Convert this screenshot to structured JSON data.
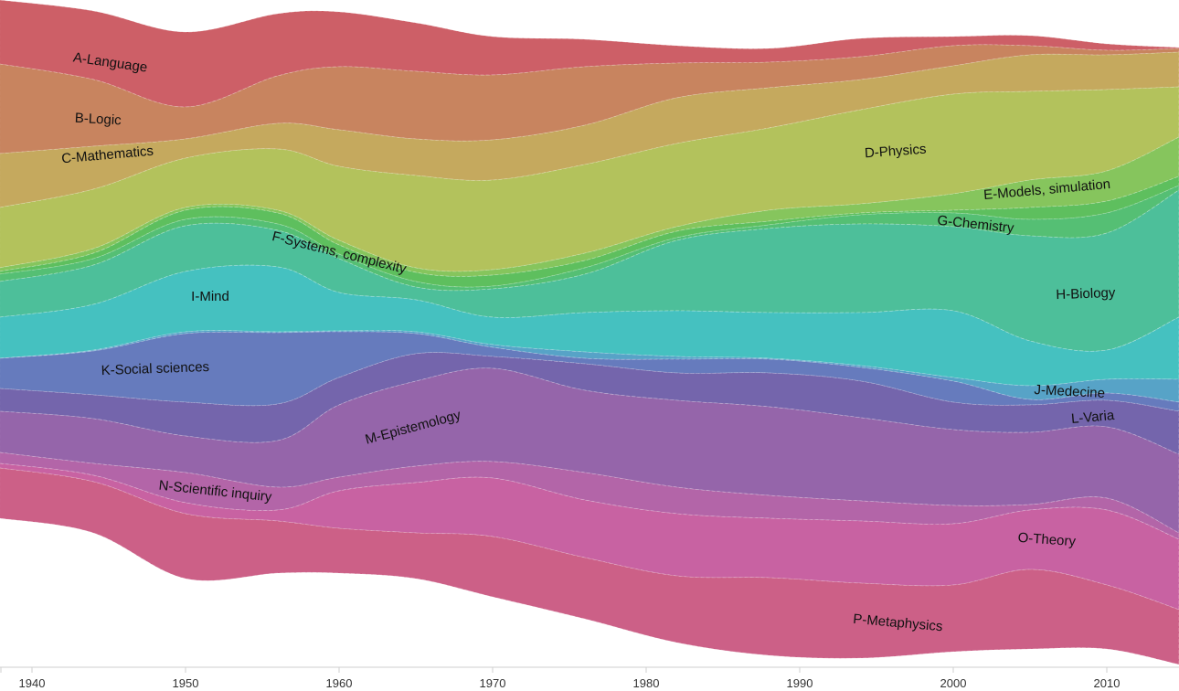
{
  "chart_data": {
    "type": "area",
    "subtype": "streamgraph",
    "title": "",
    "xlabel": "",
    "ylabel": "",
    "xlim": [
      1937.9,
      2014.7
    ],
    "ylim": [
      0,
      730
    ],
    "x_ticks": [
      "1940",
      "1950",
      "1960",
      "1970",
      "1980",
      "1990",
      "2000",
      "2010"
    ],
    "x_tick_values": [
      1940,
      1950,
      1960,
      1970,
      1980,
      1990,
      2000,
      2010
    ],
    "years": [
      1937.9,
      1944,
      1950,
      1956,
      1960,
      1965,
      1970,
      1976,
      1982,
      1988,
      1994,
      2000,
      2005,
      2010,
      2014.7
    ],
    "baseline": [
      0,
      12,
      35,
      15,
      13,
      25,
      40,
      43,
      50,
      53,
      42,
      40,
      39,
      48,
      52
    ],
    "series": [
      {
        "name": "A-Language",
        "color": "#cd5f67",
        "values": [
          70,
          75,
          82,
          68,
          60,
          53,
          42,
          30,
          19,
          15,
          20,
          10,
          11,
          7,
          1
        ]
      },
      {
        "name": "B-Logic",
        "color": "#c8845f",
        "values": [
          98,
          73,
          35,
          52,
          69,
          74,
          71,
          64,
          38,
          28,
          25,
          22,
          10,
          5,
          4
        ]
      },
      {
        "name": "C-Mathematics",
        "color": "#c5a95e",
        "values": [
          59,
          47,
          21,
          28,
          40,
          40,
          44,
          43,
          50,
          44,
          33,
          31,
          40,
          38,
          38
        ]
      },
      {
        "name": "D-Physics",
        "color": "#b3c25c",
        "values": [
          66,
          65,
          54,
          67,
          81,
          101,
          98,
          97,
          91,
          90,
          103,
          109,
          97,
          89,
          55
        ]
      },
      {
        "name": "E-Models, simulation",
        "color": "#86c55d",
        "values": [
          4,
          5,
          3,
          3,
          5,
          5,
          6,
          8,
          5,
          12,
          10,
          18,
          30,
          33,
          43
        ]
      },
      {
        "name": "F-Systems, complexity",
        "color": "#5ebf5e",
        "values": [
          3,
          6,
          10,
          12,
          10,
          10,
          12,
          8,
          7,
          4,
          2,
          3,
          13,
          13,
          10
        ]
      },
      {
        "name": "G-Chemistry",
        "color": "#55bf74",
        "values": [
          8,
          7,
          7,
          7,
          5,
          6,
          3,
          7,
          3,
          4,
          10,
          15,
          18,
          22,
          5
        ]
      },
      {
        "name": "H-Biology",
        "color": "#4dbf9a",
        "values": [
          39,
          43,
          50,
          40,
          37,
          14,
          31,
          42,
          77,
          92,
          97,
          92,
          115,
          128,
          139
        ]
      },
      {
        "name": "I-Mind",
        "color": "#45c1c0",
        "values": [
          45,
          50,
          66,
          71,
          42,
          35,
          30,
          43,
          50,
          50,
          58,
          73,
          49,
          32,
          68
        ]
      },
      {
        "name": "J-Medecine",
        "color": "#57a3c7",
        "values": [
          0,
          1,
          2,
          1,
          1,
          2,
          3,
          7,
          3,
          1,
          2,
          4,
          15,
          15,
          25
        ]
      },
      {
        "name": "K-Social sciences",
        "color": "#667bbd",
        "values": [
          33,
          48,
          75,
          78,
          50,
          22,
          10,
          6,
          15,
          15,
          15,
          23,
          6,
          8,
          10
        ]
      },
      {
        "name": "L-Varia",
        "color": "#7465ac",
        "values": [
          25,
          26,
          37,
          40,
          30,
          30,
          13,
          29,
          30,
          37,
          40,
          30,
          30,
          29,
          47
        ]
      },
      {
        "name": "M-Epistemology",
        "color": "#9565aa",
        "values": [
          45,
          49,
          40,
          51,
          79,
          93,
          102,
          90,
          95,
          97,
          91,
          83,
          79,
          78,
          86
        ]
      },
      {
        "name": "N-Scientific inquiry",
        "color": "#b365a8",
        "values": [
          12,
          13,
          33,
          25,
          15,
          18,
          18,
          30,
          29,
          25,
          22,
          20,
          6,
          13,
          7
        ]
      },
      {
        "name": "O-Theory",
        "color": "#c862a2",
        "values": [
          5,
          7,
          12,
          12,
          41,
          55,
          64,
          63,
          68,
          65,
          68,
          67,
          65,
          82,
          77
        ]
      },
      {
        "name": "P-Metaphysics",
        "color": "#cc6087",
        "values": [
          55,
          56,
          71,
          57,
          49,
          50,
          66,
          67,
          73,
          85,
          82,
          73,
          87,
          70,
          60
        ]
      }
    ],
    "legend": "inline labels"
  }
}
